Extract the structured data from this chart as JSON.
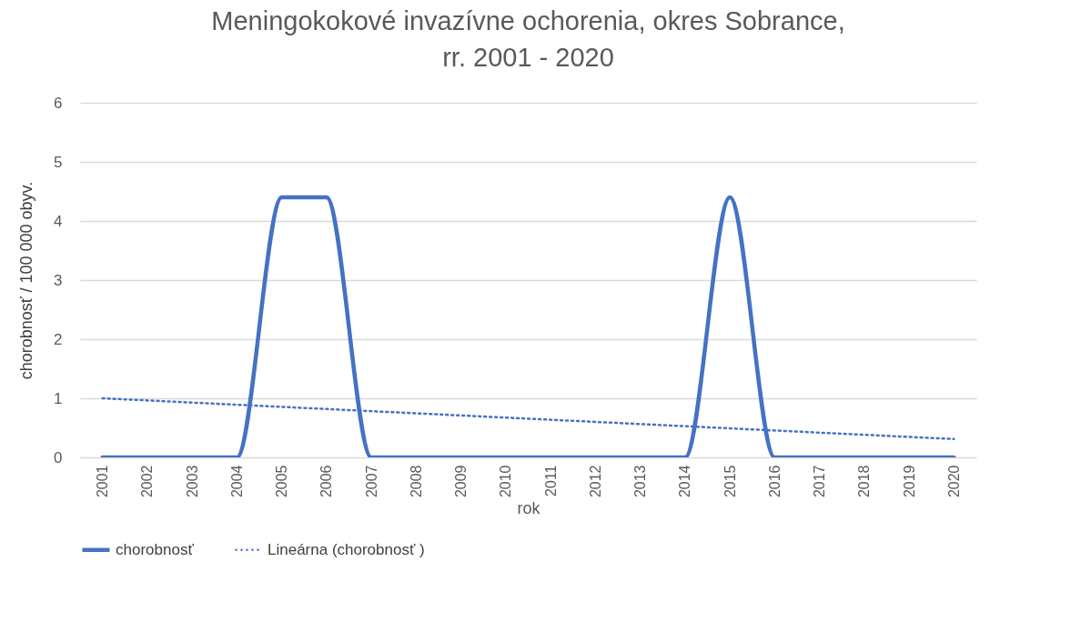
{
  "chart_data": {
    "type": "line",
    "title": "Meningokokové invazívne ochorenia, okres Sobrance,\nrr. 2001 - 2020",
    "xlabel": "rok",
    "ylabel": "chorobnosť / 100 000 obyv.",
    "categories": [
      "2001",
      "2002",
      "2003",
      "2004",
      "2005",
      "2006",
      "2007",
      "2008",
      "2009",
      "2010",
      "2011",
      "2012",
      "2013",
      "2014",
      "2015",
      "2016",
      "2017",
      "2018",
      "2019",
      "2020"
    ],
    "series": [
      {
        "name": "chorobnosť",
        "color": "#4472c4",
        "line_style": "solid",
        "values": [
          0,
          0,
          0,
          0,
          4.4,
          4.4,
          0,
          0,
          0,
          0,
          0,
          0,
          0,
          0,
          4.4,
          0,
          0,
          0,
          0,
          0
        ]
      },
      {
        "name": "Lineárna (chorobnosť )",
        "color": "#4472c4",
        "line_style": "dotted",
        "values": [
          1.0,
          null,
          null,
          null,
          null,
          null,
          null,
          null,
          null,
          null,
          null,
          null,
          null,
          null,
          null,
          null,
          null,
          null,
          null,
          0.31
        ]
      }
    ],
    "ylim": [
      0,
      6
    ],
    "yticks": [
      0,
      1,
      2,
      3,
      4,
      5,
      6
    ],
    "grid": "y",
    "legend": "bottom"
  }
}
